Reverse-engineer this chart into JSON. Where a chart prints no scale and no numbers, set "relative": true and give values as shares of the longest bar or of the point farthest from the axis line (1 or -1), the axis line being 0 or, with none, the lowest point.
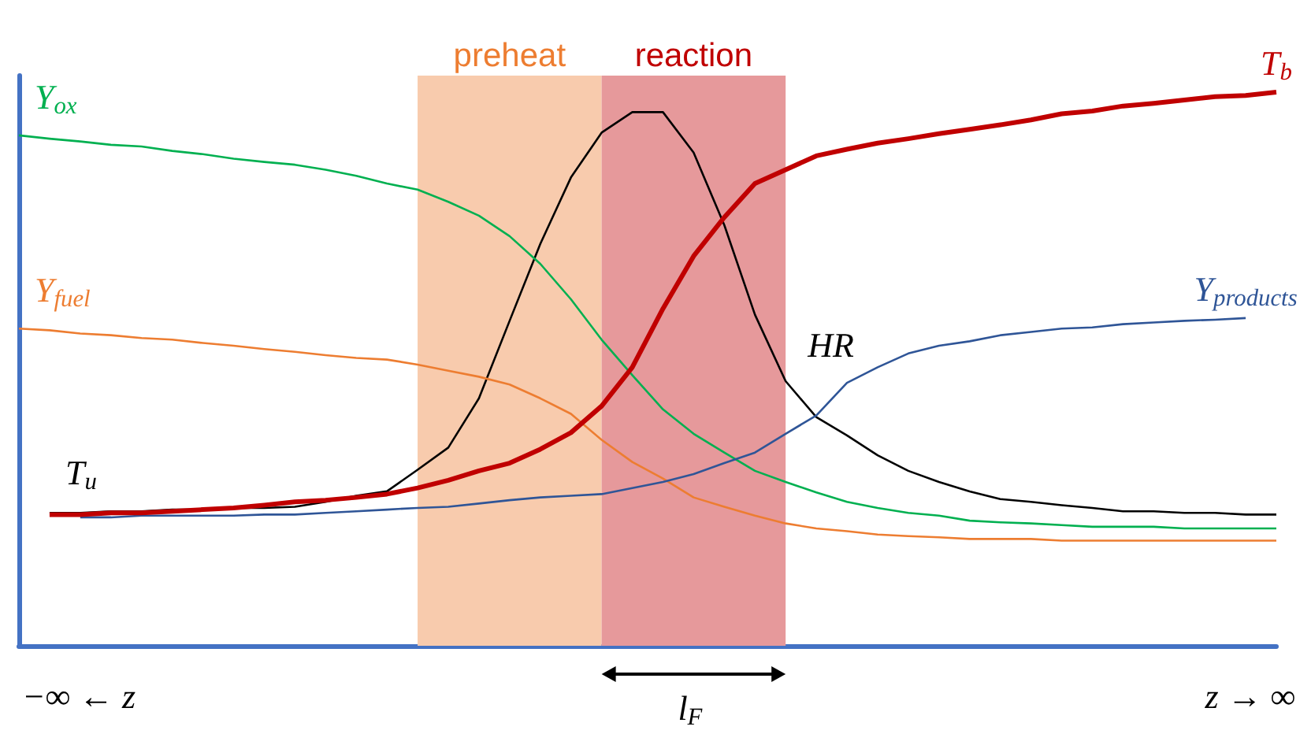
{
  "chart_data": {
    "type": "line",
    "relative": true,
    "grid": false,
    "marker": "none",
    "categories": [
      null,
      null,
      null,
      null,
      null,
      null,
      null,
      null,
      null,
      null,
      null,
      null,
      null,
      null,
      null,
      null,
      null,
      null,
      null,
      null,
      null,
      null,
      null,
      null,
      null,
      null,
      null,
      null,
      null,
      null,
      null,
      null,
      null,
      null,
      null,
      null,
      null,
      null,
      null,
      null,
      null,
      null
    ],
    "series": [
      {
        "name": "T$_{b}$",
        "color": "#c00000",
        "values": [
          null,
          0.237,
          0.237,
          0.24,
          0.24,
          0.243,
          0.246,
          0.249,
          0.254,
          0.26,
          0.263,
          0.268,
          0.274,
          0.285,
          0.299,
          0.316,
          0.33,
          0.355,
          0.385,
          0.433,
          0.503,
          0.609,
          0.704,
          0.774,
          0.835,
          0.86,
          0.885,
          0.897,
          0.908,
          0.916,
          0.925,
          0.933,
          0.941,
          0.95,
          0.961,
          0.966,
          0.975,
          0.98,
          0.986,
          0.992,
          0.994,
          1
        ]
      },
      {
        "name": "HR",
        "color": "#000000",
        "values": [
          null,
          0.24,
          0.24,
          0.243,
          0.243,
          0.246,
          0.246,
          0.249,
          0.249,
          0.251,
          0.26,
          0.271,
          0.279,
          0.318,
          0.358,
          0.447,
          0.587,
          0.726,
          0.846,
          0.927,
          0.964,
          0.964,
          0.891,
          0.76,
          0.598,
          0.478,
          0.413,
          0.38,
          0.344,
          0.316,
          0.296,
          0.279,
          0.265,
          0.26,
          0.254,
          0.249,
          0.243,
          0.243,
          0.24,
          0.24,
          0.237,
          0.237
        ]
      },
      {
        "name": "Y$_{ox}$",
        "color": "#00b050",
        "values": [
          0.922,
          0.916,
          0.911,
          0.905,
          0.902,
          0.894,
          0.888,
          0.88,
          0.874,
          0.869,
          0.86,
          0.849,
          0.835,
          0.824,
          0.802,
          0.777,
          0.74,
          0.69,
          0.626,
          0.553,
          0.489,
          0.427,
          0.383,
          0.349,
          0.316,
          0.296,
          0.277,
          0.26,
          0.249,
          0.24,
          0.235,
          0.226,
          0.223,
          0.221,
          0.218,
          0.215,
          0.215,
          0.215,
          0.212,
          0.212,
          0.212,
          0.212
        ]
      },
      {
        "name": "Y$_{fuel}$",
        "color": "#ed7d31",
        "values": [
          0.573,
          0.57,
          0.564,
          0.561,
          0.556,
          0.553,
          0.547,
          0.542,
          0.536,
          0.531,
          0.525,
          0.52,
          0.517,
          0.508,
          0.497,
          0.486,
          0.472,
          0.447,
          0.419,
          0.372,
          0.332,
          0.302,
          0.268,
          0.251,
          0.235,
          0.221,
          0.212,
          0.207,
          0.201,
          0.198,
          0.196,
          0.193,
          0.193,
          0.193,
          0.19,
          0.19,
          0.19,
          0.19,
          0.19,
          0.19,
          0.19,
          0.19
        ]
      },
      {
        "name": "Y$_{products}$",
        "color": "#2f5597",
        "values": [
          null,
          null,
          0.232,
          0.232,
          0.235,
          0.235,
          0.235,
          0.235,
          0.237,
          0.237,
          0.24,
          0.243,
          0.246,
          0.249,
          0.251,
          0.257,
          0.263,
          0.268,
          0.271,
          0.274,
          0.285,
          0.296,
          0.31,
          0.33,
          0.349,
          0.383,
          0.416,
          0.475,
          0.503,
          0.528,
          0.542,
          0.55,
          0.561,
          0.567,
          0.573,
          0.575,
          0.581,
          0.584,
          0.587,
          0.589,
          0.592,
          null
        ]
      }
    ],
    "annotations": [
      "T$_{u}$",
      "−∞ ← z",
      "z → ∞",
      "l$_{F}$",
      "preheat",
      "reaction"
    ]
  }
}
